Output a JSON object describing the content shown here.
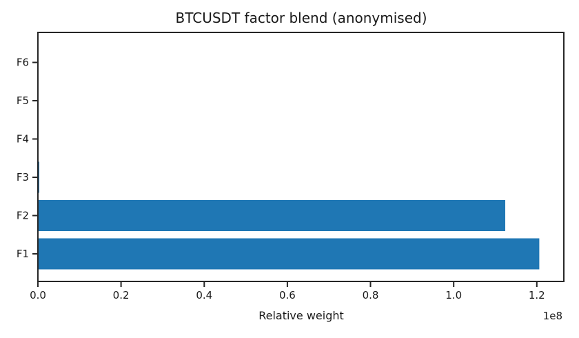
{
  "chart_data": {
    "type": "bar",
    "orientation": "horizontal",
    "title": "BTCUSDT factor blend (anonymised)",
    "xlabel": "Relative weight",
    "ylabel": "",
    "categories": [
      "F1",
      "F2",
      "F3",
      "F4",
      "F5",
      "F6"
    ],
    "values": [
      120600000,
      112400000,
      330000,
      0,
      0,
      0
    ],
    "x_ticks": [
      0.0,
      0.2,
      0.4,
      0.6,
      0.8,
      1.0,
      1.2
    ],
    "x_tick_labels": [
      "0.0",
      "0.2",
      "0.4",
      "0.6",
      "0.8",
      "1.0",
      "1.2"
    ],
    "x_offset_label": "1e8",
    "x_scale_factor": 100000000,
    "xlim": [
      0,
      126500000
    ],
    "grid": false,
    "legend": null,
    "bar_color": "#1f77b4",
    "spine_color": "#262626",
    "text_color": "#1a1a1a"
  }
}
